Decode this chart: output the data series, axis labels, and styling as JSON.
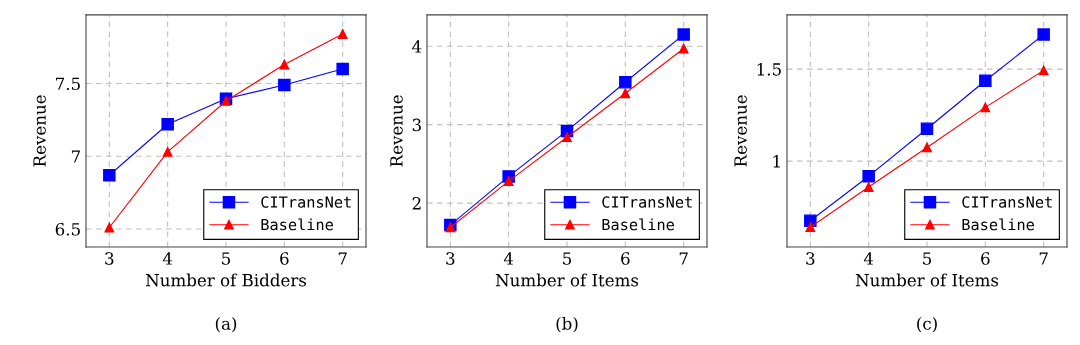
{
  "chart_data": [
    {
      "type": "line",
      "xlabel": "Number of Bidders",
      "ylabel": "Revenue",
      "annotations": [
        "(a)"
      ],
      "x": [
        3,
        4,
        5,
        6,
        7
      ],
      "xlim": [
        2.6,
        7.4
      ],
      "xticks": [
        3,
        4,
        5,
        6,
        7
      ],
      "ylim": [
        6.376,
        7.972
      ],
      "yticks": [
        6.5,
        7,
        7.5
      ],
      "grid": true,
      "legend": "bottom right",
      "series": [
        {
          "name": "CITransNet",
          "color": "#0000ff",
          "marker": "square",
          "values": [
            6.87,
            7.22,
            7.395,
            7.49,
            7.6
          ]
        },
        {
          "name": "Baseline",
          "color": "#ff0000",
          "marker": "triangle",
          "values": [
            6.51,
            7.03,
            7.38,
            7.63,
            7.84
          ]
        }
      ]
    },
    {
      "type": "line",
      "xlabel": "Number of Items",
      "ylabel": "Revenue",
      "annotations": [
        "(b)"
      ],
      "x": [
        3,
        4,
        5,
        6,
        7
      ],
      "xlim": [
        2.6,
        7.4
      ],
      "xticks": [
        3,
        4,
        5,
        6,
        7
      ],
      "ylim": [
        1.44,
        4.4
      ],
      "yticks": [
        2,
        3,
        4
      ],
      "grid": true,
      "legend": "bottom right",
      "series": [
        {
          "name": "CITransNet",
          "color": "#0000ff",
          "marker": "square",
          "values": [
            1.72,
            2.34,
            2.92,
            3.54,
            4.15
          ]
        },
        {
          "name": "Baseline",
          "color": "#ff0000",
          "marker": "triangle",
          "values": [
            1.69,
            2.28,
            2.84,
            3.4,
            3.97
          ]
        }
      ]
    },
    {
      "type": "line",
      "xlabel": "Number of Items",
      "ylabel": "Revenue",
      "annotations": [
        "(c)"
      ],
      "x": [
        3,
        4,
        5,
        6,
        7
      ],
      "xlim": [
        2.6,
        7.4
      ],
      "xticks": [
        3,
        4,
        5,
        6,
        7
      ],
      "ylim": [
        0.533,
        1.795
      ],
      "yticks": [
        1,
        1.5
      ],
      "grid": true,
      "legend": "bottom right",
      "series": [
        {
          "name": "CITransNet",
          "color": "#0000ff",
          "marker": "square",
          "values": [
            0.676,
            0.918,
            1.176,
            1.437,
            1.688
          ]
        },
        {
          "name": "Baseline",
          "color": "#ff0000",
          "marker": "triangle",
          "values": [
            0.641,
            0.859,
            1.074,
            1.292,
            1.493
          ]
        }
      ]
    }
  ]
}
